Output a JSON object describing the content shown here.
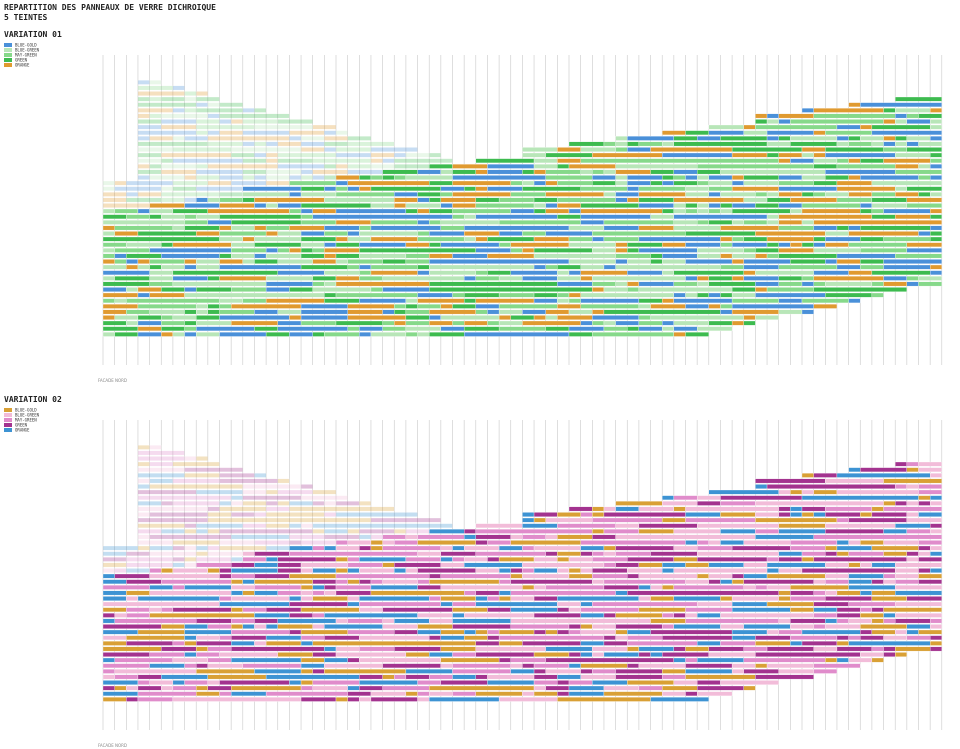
{
  "header": {
    "title": "REPARTITION DES PANNEAUX DE VERRE DICHROIQUE",
    "subtitle": "5 TEINTES"
  },
  "variations": [
    {
      "title": "VARIATION 01",
      "facade": "FACADE NORD",
      "legend": [
        {
          "label": "BLUE-GOLD",
          "color": "#4a90d9"
        },
        {
          "label": "BLUE-GREEN",
          "color": "#b8e6b8"
        },
        {
          "label": "MAY-GREEN",
          "color": "#86d98a"
        },
        {
          "label": "GREEN",
          "color": "#3dbb4f"
        },
        {
          "label": "ORANGE",
          "color": "#e09a30"
        }
      ]
    },
    {
      "title": "VARIATION 02",
      "facade": "FACADE NORD",
      "legend": [
        {
          "label": "BLUE-GOLD",
          "color": "#d9a035"
        },
        {
          "label": "BLUE-GREEN",
          "color": "#f2bcd9"
        },
        {
          "label": "MAY-GREEN",
          "color": "#e08ccb"
        },
        {
          "label": "GREEN",
          "color": "#a3338f"
        },
        {
          "label": "ORANGE",
          "color": "#3d93d3"
        }
      ]
    }
  ]
}
